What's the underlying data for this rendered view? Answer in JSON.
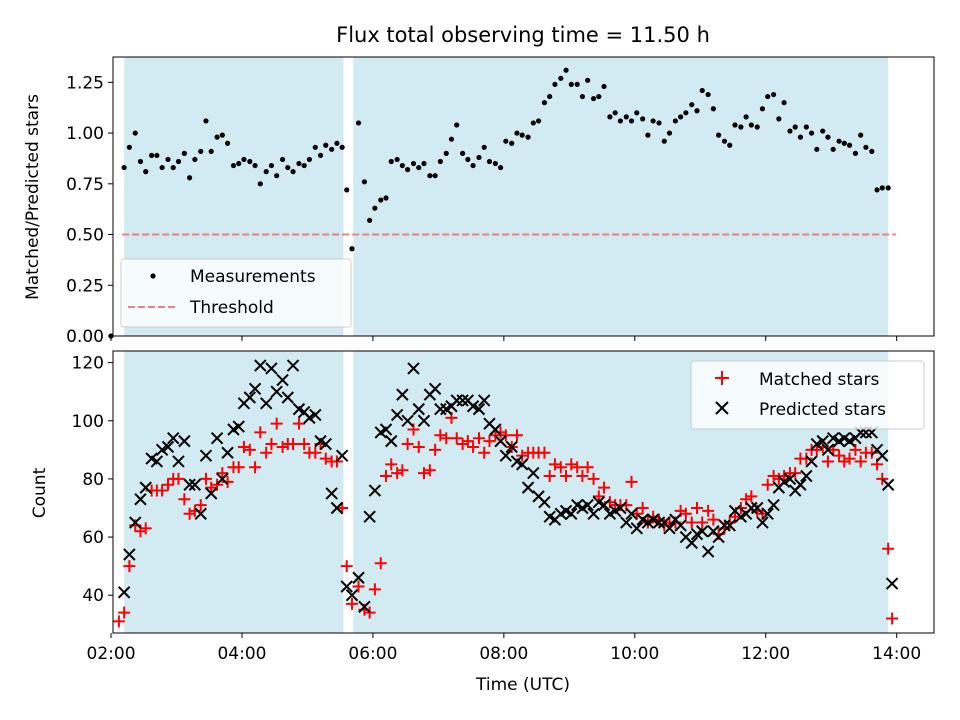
{
  "title": "Flux total observing time = 11.50 h",
  "colors": {
    "span": "#add8e6",
    "measurement": "#000000",
    "threshold": "#f08080",
    "matched": "#ff0000",
    "predicted": "#000000"
  },
  "chart_data": [
    {
      "type": "scatter",
      "ylabel": "Matched/Predicted stars",
      "xlabel": "",
      "xlim": [
        2.03,
        14.57
      ],
      "ylim": [
        0,
        1.375
      ],
      "yticks": [
        0.0,
        0.25,
        0.5,
        0.75,
        1.0,
        1.25
      ],
      "ytick_labels": [
        "0.00",
        "0.25",
        "0.50",
        "0.75",
        "1.00",
        "1.25"
      ],
      "legend": [
        "Measurements",
        "Threshold"
      ],
      "legend_position": "lower-left",
      "grid": false,
      "threshold": 0.5,
      "threshold_x": [
        2.17,
        14.82
      ],
      "observing_spans": [
        [
          2.2,
          5.55
        ],
        [
          5.7,
          13.87
        ]
      ],
      "series": [
        {
          "name": "Measurements",
          "marker": "dot",
          "x": [
            2.0,
            2.2,
            2.28,
            2.37,
            2.45,
            2.53,
            2.62,
            2.7,
            2.78,
            2.87,
            2.95,
            3.03,
            3.12,
            3.2,
            3.28,
            3.37,
            3.45,
            3.53,
            3.62,
            3.7,
            3.78,
            3.87,
            3.95,
            4.03,
            4.12,
            4.2,
            4.28,
            4.37,
            4.45,
            4.53,
            4.62,
            4.7,
            4.78,
            4.87,
            4.95,
            5.03,
            5.12,
            5.2,
            5.28,
            5.37,
            5.45,
            5.53,
            5.6,
            5.68,
            5.78,
            5.87,
            5.95,
            6.03,
            6.12,
            6.2,
            6.28,
            6.37,
            6.45,
            6.53,
            6.62,
            6.7,
            6.78,
            6.87,
            6.95,
            7.03,
            7.12,
            7.2,
            7.28,
            7.37,
            7.45,
            7.53,
            7.62,
            7.7,
            7.78,
            7.87,
            7.95,
            8.03,
            8.12,
            8.2,
            8.28,
            8.37,
            8.45,
            8.53,
            8.62,
            8.7,
            8.78,
            8.87,
            8.95,
            9.03,
            9.12,
            9.2,
            9.28,
            9.37,
            9.45,
            9.53,
            9.62,
            9.7,
            9.78,
            9.87,
            9.95,
            10.03,
            10.12,
            10.2,
            10.28,
            10.37,
            10.45,
            10.53,
            10.62,
            10.7,
            10.78,
            10.87,
            10.95,
            11.03,
            11.12,
            11.2,
            11.28,
            11.37,
            11.45,
            11.53,
            11.62,
            11.7,
            11.78,
            11.87,
            11.95,
            12.03,
            12.12,
            12.2,
            12.28,
            12.37,
            12.45,
            12.53,
            12.62,
            12.7,
            12.78,
            12.87,
            12.95,
            13.03,
            13.12,
            13.2,
            13.28,
            13.37,
            13.45,
            13.53,
            13.62,
            13.7,
            13.78,
            13.87
          ],
          "y": [
            0.0,
            0.83,
            0.93,
            1.0,
            0.86,
            0.81,
            0.89,
            0.89,
            0.83,
            0.87,
            0.83,
            0.86,
            0.9,
            0.78,
            0.87,
            0.91,
            1.06,
            0.91,
            0.98,
            0.99,
            0.95,
            0.84,
            0.85,
            0.87,
            0.86,
            0.84,
            0.75,
            0.81,
            0.84,
            0.79,
            0.87,
            0.83,
            0.81,
            0.85,
            0.84,
            0.87,
            0.93,
            0.89,
            0.94,
            0.92,
            0.95,
            0.93,
            0.72,
            0.43,
            1.05,
            0.76,
            0.57,
            0.63,
            0.67,
            0.68,
            0.86,
            0.87,
            0.84,
            0.82,
            0.85,
            0.83,
            0.85,
            0.79,
            0.79,
            0.86,
            0.9,
            0.97,
            1.04,
            0.9,
            0.87,
            0.84,
            0.88,
            0.93,
            0.86,
            0.85,
            0.83,
            0.96,
            0.95,
            1.0,
            0.99,
            0.98,
            1.05,
            1.06,
            1.15,
            1.18,
            1.24,
            1.27,
            1.31,
            1.24,
            1.24,
            1.18,
            1.26,
            1.17,
            1.18,
            1.23,
            1.08,
            1.1,
            1.06,
            1.08,
            1.06,
            1.1,
            1.07,
            0.99,
            1.06,
            1.05,
            0.96,
            1.0,
            1.06,
            1.08,
            1.1,
            1.14,
            1.11,
            1.21,
            1.19,
            1.12,
            0.99,
            0.96,
            0.94,
            1.04,
            1.03,
            1.08,
            1.04,
            1.03,
            1.12,
            1.18,
            1.19,
            1.07,
            1.15,
            1.01,
            1.03,
            0.98,
            1.03,
            1.0,
            0.92,
            1.01,
            0.98,
            0.92,
            0.96,
            0.95,
            0.94,
            0.9,
            0.99,
            0.93,
            0.91,
            0.72,
            0.73,
            0.73
          ]
        }
      ]
    },
    {
      "type": "scatter",
      "ylabel": "Count",
      "xlabel": "Time (UTC)",
      "xlim": [
        2.03,
        14.57
      ],
      "ylim": [
        27,
        124
      ],
      "yticks": [
        40,
        60,
        80,
        100,
        120
      ],
      "ytick_labels": [
        "40",
        "60",
        "80",
        "100",
        "120"
      ],
      "xticks": [
        2,
        4,
        6,
        8,
        10,
        12,
        14
      ],
      "xtick_labels": [
        "02:00",
        "04:00",
        "06:00",
        "08:00",
        "10:00",
        "12:00",
        "14:00"
      ],
      "legend": [
        "Matched stars",
        "Predicted stars"
      ],
      "legend_position": "upper-right",
      "grid": false,
      "observing_spans": [
        [
          2.2,
          5.55
        ],
        [
          5.7,
          13.87
        ]
      ],
      "series": [
        {
          "name": "Matched stars",
          "marker": "plus",
          "x": [
            2.12,
            2.2,
            2.28,
            2.37,
            2.45,
            2.53,
            2.62,
            2.7,
            2.78,
            2.87,
            2.95,
            3.03,
            3.12,
            3.2,
            3.28,
            3.37,
            3.45,
            3.53,
            3.62,
            3.7,
            3.78,
            3.87,
            3.95,
            4.03,
            4.12,
            4.2,
            4.28,
            4.37,
            4.45,
            4.53,
            4.62,
            4.7,
            4.78,
            4.87,
            4.95,
            5.03,
            5.12,
            5.2,
            5.28,
            5.37,
            5.45,
            5.53,
            5.6,
            5.68,
            5.78,
            5.87,
            5.95,
            6.03,
            6.12,
            6.2,
            6.28,
            6.37,
            6.45,
            6.53,
            6.62,
            6.7,
            6.78,
            6.87,
            6.95,
            7.03,
            7.12,
            7.2,
            7.28,
            7.37,
            7.45,
            7.53,
            7.62,
            7.7,
            7.78,
            7.87,
            7.95,
            8.03,
            8.12,
            8.2,
            8.28,
            8.37,
            8.45,
            8.53,
            8.62,
            8.7,
            8.78,
            8.87,
            8.95,
            9.03,
            9.12,
            9.2,
            9.28,
            9.37,
            9.45,
            9.53,
            9.62,
            9.7,
            9.78,
            9.87,
            9.95,
            10.03,
            10.12,
            10.2,
            10.28,
            10.37,
            10.45,
            10.53,
            10.62,
            10.7,
            10.78,
            10.87,
            10.95,
            11.03,
            11.12,
            11.2,
            11.28,
            11.37,
            11.45,
            11.53,
            11.62,
            11.7,
            11.78,
            11.87,
            11.95,
            12.03,
            12.12,
            12.2,
            12.28,
            12.37,
            12.45,
            12.53,
            12.62,
            12.7,
            12.78,
            12.87,
            12.95,
            13.03,
            13.12,
            13.2,
            13.28,
            13.37,
            13.45,
            13.53,
            13.62,
            13.7,
            13.78,
            13.87,
            13.93
          ],
          "y": [
            31,
            34,
            50,
            64,
            62,
            63,
            76,
            76,
            76,
            78,
            80,
            80,
            73,
            68,
            69,
            71,
            80,
            77,
            78,
            82,
            79,
            84,
            84,
            91,
            90,
            84,
            96,
            89,
            92,
            99,
            91,
            92,
            92,
            99,
            92,
            89,
            89,
            92,
            87,
            86,
            86,
            70,
            50,
            37,
            43,
            35,
            34,
            42,
            51,
            81,
            85,
            82,
            83,
            92,
            97,
            91,
            82,
            83,
            90,
            95,
            94,
            101,
            94,
            92,
            93,
            91,
            94,
            89,
            93,
            95,
            96,
            95,
            91,
            95,
            88,
            89,
            89,
            89,
            89,
            81,
            85,
            84,
            81,
            85,
            84,
            81,
            84,
            80,
            74,
            77,
            72,
            71,
            71,
            71,
            79,
            68,
            70,
            65,
            67,
            66,
            64,
            65,
            65,
            69,
            68,
            65,
            70,
            65,
            69,
            66,
            61,
            63,
            65,
            67,
            70,
            73,
            74,
            69,
            68,
            78,
            81,
            80,
            81,
            82,
            82,
            87,
            87,
            90,
            90,
            91,
            86,
            90,
            88,
            86,
            87,
            90,
            86,
            89,
            89,
            85,
            80,
            56,
            32
          ]
        },
        {
          "name": "Predicted stars",
          "marker": "x",
          "x": [
            2.2,
            2.28,
            2.37,
            2.45,
            2.53,
            2.62,
            2.7,
            2.78,
            2.87,
            2.95,
            3.03,
            3.12,
            3.2,
            3.28,
            3.37,
            3.45,
            3.53,
            3.62,
            3.7,
            3.78,
            3.87,
            3.95,
            4.03,
            4.12,
            4.2,
            4.28,
            4.37,
            4.45,
            4.53,
            4.62,
            4.7,
            4.78,
            4.87,
            4.95,
            5.03,
            5.12,
            5.2,
            5.28,
            5.37,
            5.45,
            5.53,
            5.6,
            5.68,
            5.78,
            5.87,
            5.95,
            6.03,
            6.12,
            6.2,
            6.28,
            6.37,
            6.45,
            6.53,
            6.62,
            6.7,
            6.78,
            6.87,
            6.95,
            7.03,
            7.12,
            7.2,
            7.28,
            7.37,
            7.45,
            7.53,
            7.62,
            7.7,
            7.78,
            7.87,
            7.95,
            8.03,
            8.12,
            8.2,
            8.28,
            8.37,
            8.45,
            8.53,
            8.62,
            8.7,
            8.78,
            8.87,
            8.95,
            9.03,
            9.12,
            9.2,
            9.28,
            9.37,
            9.45,
            9.53,
            9.62,
            9.7,
            9.78,
            9.87,
            9.95,
            10.03,
            10.12,
            10.2,
            10.28,
            10.37,
            10.45,
            10.53,
            10.62,
            10.7,
            10.78,
            10.87,
            10.95,
            11.03,
            11.12,
            11.2,
            11.28,
            11.37,
            11.45,
            11.53,
            11.62,
            11.7,
            11.78,
            11.87,
            11.95,
            12.03,
            12.12,
            12.2,
            12.28,
            12.37,
            12.45,
            12.53,
            12.62,
            12.7,
            12.78,
            12.87,
            12.95,
            13.03,
            13.12,
            13.2,
            13.28,
            13.37,
            13.45,
            13.53,
            13.62,
            13.7,
            13.78,
            13.87,
            13.93
          ],
          "y": [
            41,
            54,
            65,
            73,
            77,
            87,
            86,
            90,
            91,
            94,
            86,
            93,
            78,
            78,
            68,
            88,
            75,
            94,
            80,
            89,
            97,
            98,
            106,
            108,
            111,
            119,
            106,
            118,
            110,
            114,
            108,
            119,
            104,
            103,
            101,
            102,
            93,
            92,
            75,
            70,
            88,
            43,
            40,
            46,
            36,
            67,
            76,
            96,
            97,
            93,
            102,
            109,
            100,
            118,
            104,
            100,
            109,
            111,
            104,
            104,
            105,
            107,
            107,
            107,
            105,
            104,
            107,
            99,
            97,
            93,
            88,
            91,
            86,
            85,
            77,
            82,
            74,
            72,
            67,
            66,
            68,
            69,
            68,
            71,
            70,
            71,
            68,
            72,
            71,
            68,
            69,
            70,
            65,
            68,
            63,
            66,
            65,
            66,
            65,
            65,
            63,
            66,
            64,
            60,
            58,
            61,
            62,
            55,
            62,
            60,
            64,
            64,
            69,
            67,
            68,
            70,
            70,
            65,
            68,
            71,
            77,
            79,
            80,
            76,
            78,
            81,
            86,
            92,
            93,
            90,
            94,
            93,
            94,
            93,
            94,
            96,
            96,
            96,
            90,
            88,
            78,
            44
          ]
        }
      ]
    }
  ]
}
